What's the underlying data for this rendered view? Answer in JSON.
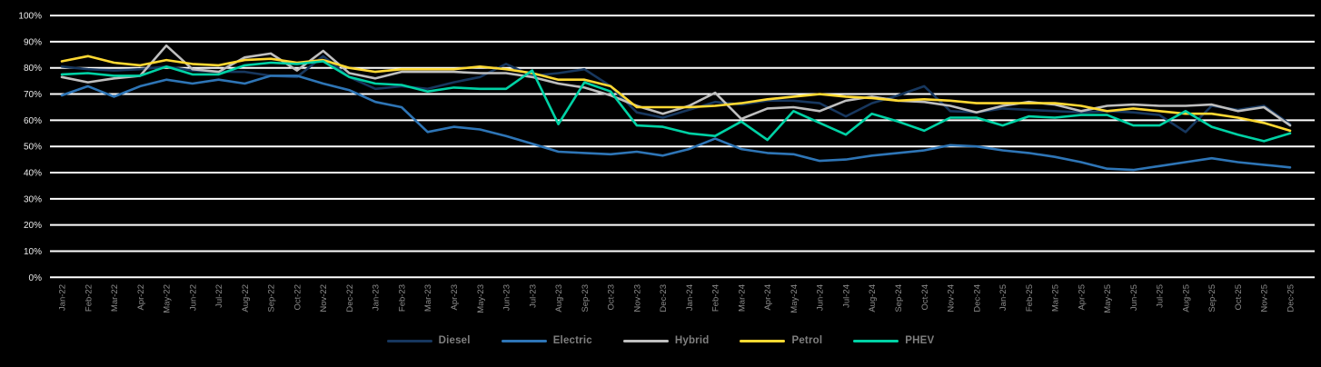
{
  "chart_data": {
    "type": "line",
    "title": "",
    "xlabel": "",
    "ylabel": "",
    "ylim": [
      0,
      100
    ],
    "y_tick_step": 10,
    "y_tick_labels": [
      "0%",
      "10%",
      "20%",
      "30%",
      "40%",
      "50%",
      "60%",
      "70%",
      "80%",
      "90%",
      "100%"
    ],
    "grid": "horizontal-white-on-black",
    "legend_position": "bottom-center",
    "x": [
      "Jan-22",
      "Feb-22",
      "Mar-22",
      "Apr-22",
      "May-22",
      "Jun-22",
      "Jul-22",
      "Aug-22",
      "Sep-22",
      "Oct-22",
      "Nov-22",
      "Dec-22",
      "Jan-23",
      "Feb-23",
      "Mar-23",
      "Apr-23",
      "May-23",
      "Jun-23",
      "Jul-23",
      "Aug-23",
      "Sep-23",
      "Oct-23",
      "Nov-23",
      "Dec-23",
      "Jan-24",
      "Feb-24",
      "Mar-24",
      "Apr-24",
      "May-24",
      "Jun-24",
      "Jul-24",
      "Aug-24",
      "Sep-24",
      "Oct-24",
      "Nov-24",
      "Dec-24",
      "Jan-25",
      "Feb-25",
      "Mar-25",
      "Apr-25",
      "May-25",
      "Jun-25",
      "Jul-25",
      "Aug-25",
      "Sep-25",
      "Oct-25",
      "Nov-25",
      "Dec-25"
    ],
    "series": [
      {
        "name": "Diesel",
        "color": "#17375e",
        "values": [
          80.5,
          79.5,
          79,
          79.5,
          80.5,
          79,
          78.5,
          78.5,
          77,
          76.5,
          84.5,
          76.5,
          72,
          73,
          72,
          74.5,
          76.5,
          81.5,
          77,
          78,
          79.5,
          73,
          63,
          61,
          64,
          67,
          66,
          67.5,
          67.5,
          66.5,
          61.5,
          66.5,
          69.5,
          73,
          63.5,
          63,
          64.5,
          64,
          63.5,
          63,
          63.5,
          63,
          62,
          55.5,
          65.5,
          64,
          65.5,
          58.5
        ]
      },
      {
        "name": "Electric",
        "color": "#2e75b6",
        "values": [
          69.5,
          73,
          69,
          73,
          75.5,
          74,
          75.5,
          74,
          77,
          77,
          74,
          71.5,
          67,
          65,
          55.5,
          57.5,
          56.5,
          54,
          51,
          48,
          47.5,
          47,
          48,
          46.5,
          49,
          53,
          49,
          47.5,
          47,
          44.5,
          45,
          46.5,
          47.5,
          48.5,
          50.5,
          50,
          48.5,
          47.5,
          46,
          44,
          41.5,
          41,
          42.5,
          44,
          45.5,
          44,
          43,
          42
        ]
      },
      {
        "name": "Hybrid",
        "color": "#bfbfbf",
        "values": [
          76.5,
          74.5,
          76,
          77,
          88.5,
          79.5,
          78.5,
          84,
          85.5,
          79,
          86.5,
          78,
          76,
          78.5,
          78.5,
          78.5,
          78,
          78,
          76.5,
          74,
          72.5,
          69.5,
          65.5,
          62.5,
          65.5,
          70.5,
          60.5,
          64.5,
          65,
          63.5,
          67.5,
          69,
          67.5,
          67,
          65.5,
          63,
          65.5,
          67,
          66,
          63.5,
          65.5,
          66,
          65.5,
          65.5,
          66,
          63.5,
          65,
          58
        ]
      },
      {
        "name": "Petrol",
        "color": "#ffd933",
        "values": [
          82.5,
          84.5,
          82,
          81,
          83,
          81.5,
          81,
          83,
          83.5,
          82,
          83,
          80,
          78.5,
          79.5,
          79.5,
          79.5,
          80.5,
          79.5,
          78,
          75.5,
          75.5,
          73,
          65,
          65,
          65,
          65.5,
          66.5,
          68,
          69,
          70,
          69,
          68.5,
          67.5,
          68,
          67.5,
          66.5,
          66.5,
          66.5,
          66.5,
          65.5,
          63.5,
          64.5,
          63.5,
          62.5,
          62.5,
          61,
          59,
          56
        ]
      },
      {
        "name": "PHEV",
        "color": "#00d2a5",
        "values": [
          77.5,
          78,
          77,
          77,
          80.5,
          77.5,
          77.5,
          81,
          82,
          81.5,
          82.5,
          76.5,
          74,
          73.5,
          71,
          72.5,
          72,
          72,
          79,
          58.5,
          74.5,
          71,
          58,
          57.5,
          55,
          54,
          59.5,
          52.5,
          63.5,
          59,
          54.5,
          62.5,
          59.5,
          56,
          61,
          61,
          58,
          61.5,
          61,
          62,
          62,
          58,
          58,
          63.5,
          57.5,
          54.5,
          52,
          55
        ]
      }
    ]
  },
  "style": {
    "background": "#000000",
    "gridline_color": "#ffffff",
    "y_tick_text_color": "#ececec",
    "x_tick_text_color": "#8c8c8c",
    "legend_text_color": "#7f7f7f"
  }
}
